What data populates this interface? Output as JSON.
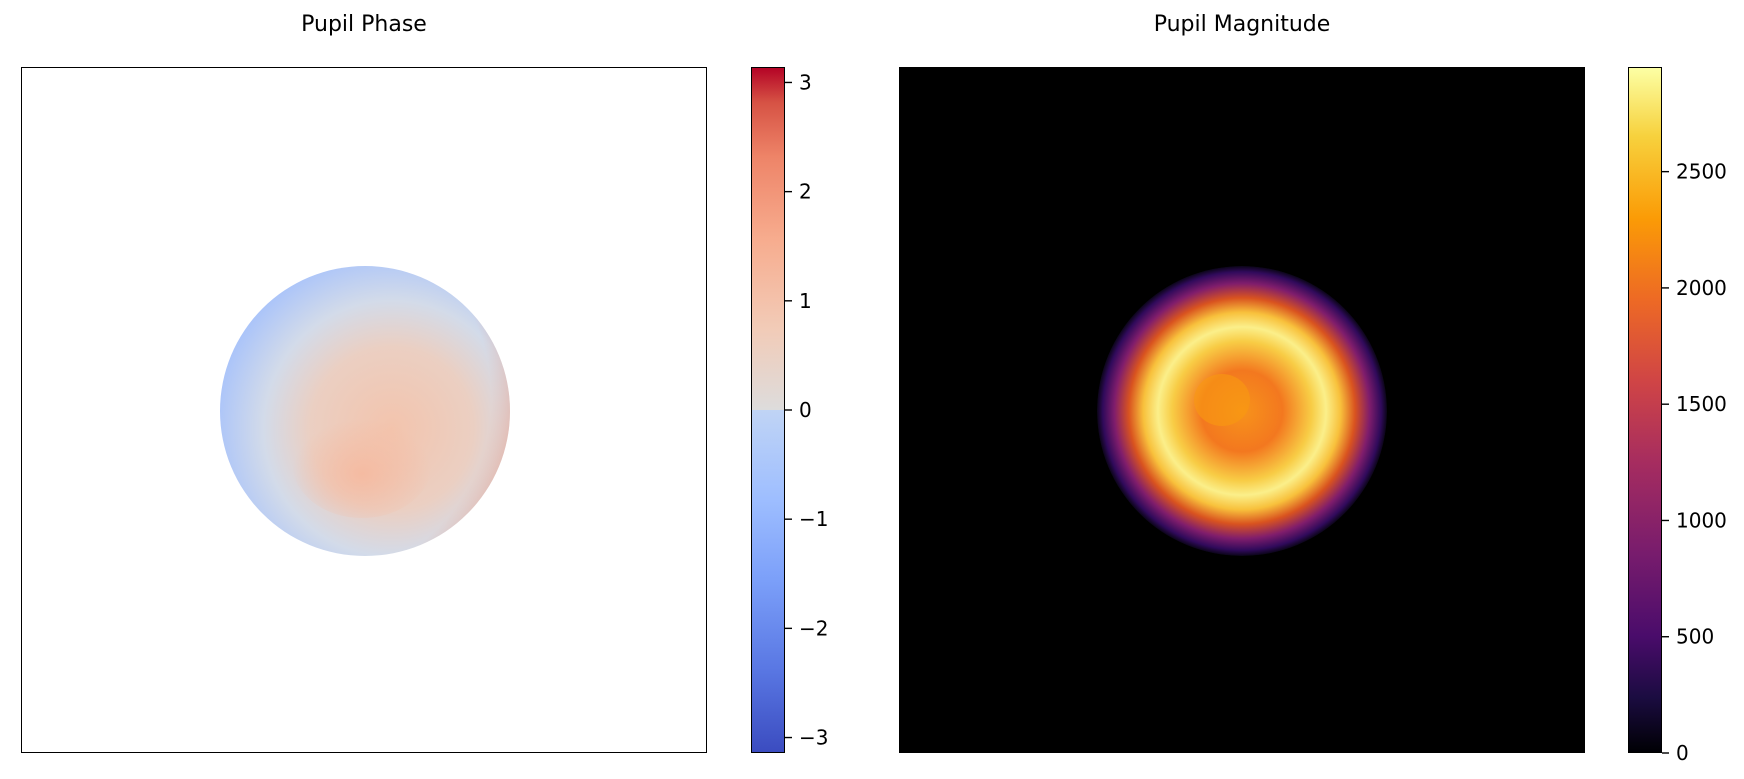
{
  "chart_data": [
    {
      "type": "heatmap",
      "title": "Pupil Phase",
      "xlabel": "",
      "ylabel": "",
      "colormap": "coolwarm",
      "colorbar": {
        "range": [
          -3.14159,
          3.14159
        ],
        "ticks": [
          3,
          2,
          1,
          0,
          -1,
          -2,
          -3
        ],
        "tick_labels": [
          "3",
          "2",
          "1",
          "0",
          "−1",
          "−2",
          "−3"
        ]
      },
      "background": "#ffffff"
    },
    {
      "type": "heatmap",
      "title": "Pupil Magnitude",
      "xlabel": "",
      "ylabel": "",
      "colormap": "inferno",
      "colorbar": {
        "range": [
          0,
          2950
        ],
        "ticks": [
          2500,
          2000,
          1500,
          1000,
          500,
          0
        ],
        "tick_labels": [
          "2500",
          "2000",
          "1500",
          "1000",
          "500",
          "0"
        ]
      },
      "background": "#000000"
    }
  ]
}
